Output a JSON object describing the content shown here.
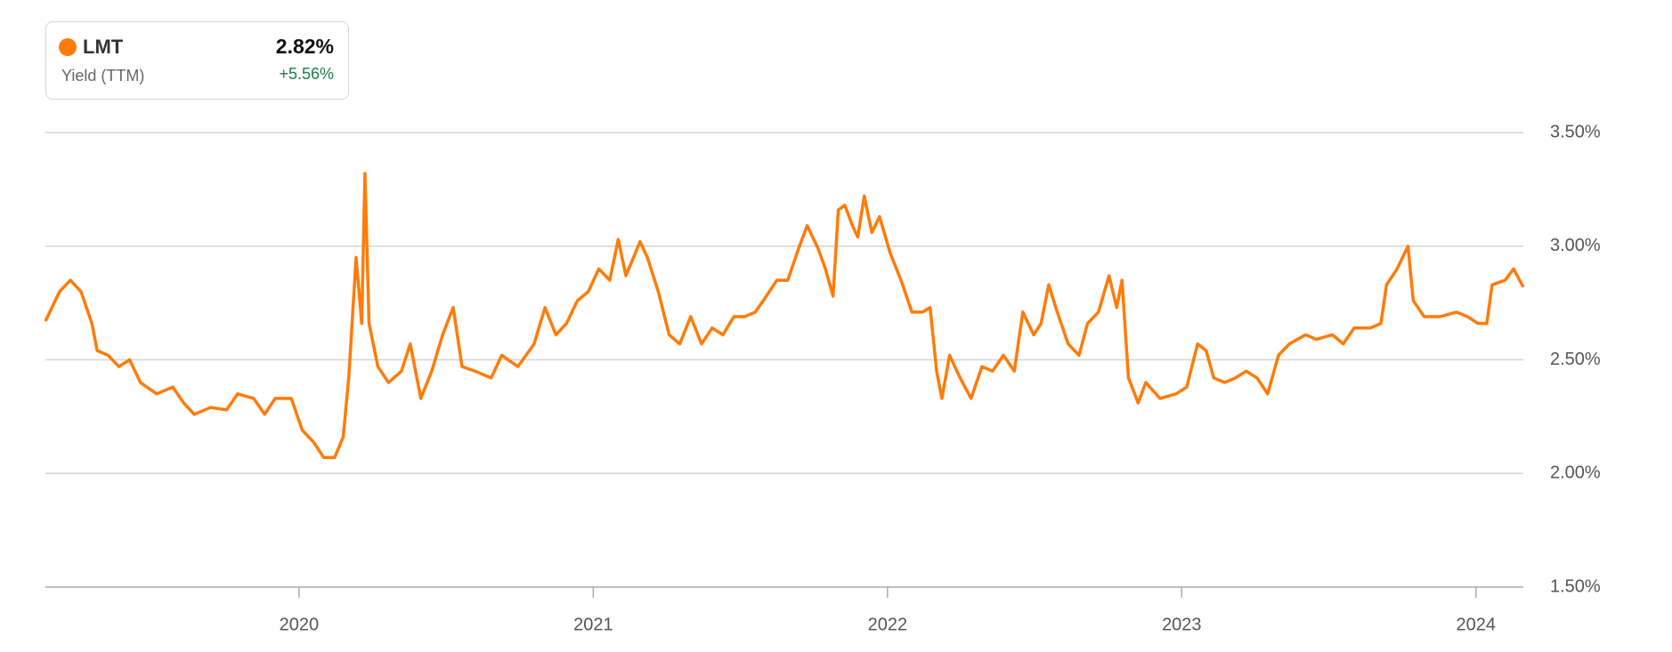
{
  "chart_data": {
    "type": "line",
    "summary": {
      "metric": "Yield (TTM)",
      "last": "2.82%",
      "change": "+5.56%"
    },
    "xlim": [
      2019.138,
      2024.161
    ],
    "xticks": [
      2020,
      2021,
      2022,
      2023,
      2024
    ],
    "ylim": [
      1.5,
      3.5
    ],
    "yticks": [
      {
        "value": 1.5,
        "label": "1.50%"
      },
      {
        "value": 2,
        "label": "2.00%"
      },
      {
        "value": 2.5,
        "label": "2.50%"
      },
      {
        "value": 3,
        "label": "3.00%"
      },
      {
        "value": 3.5,
        "label": "3.50%"
      }
    ],
    "grid": true,
    "x": [
      2019.138,
      2019.186,
      2019.223,
      2019.259,
      2019.296,
      2019.314,
      2019.351,
      2019.388,
      2019.424,
      2019.461,
      2019.516,
      2019.571,
      2019.608,
      2019.644,
      2019.699,
      2019.754,
      2019.791,
      2019.846,
      2019.883,
      2019.919,
      2019.974,
      2020.011,
      2020.048,
      2020.084,
      2020.121,
      2020.15,
      2020.169,
      2020.194,
      2020.213,
      2020.224,
      2020.238,
      2020.268,
      2020.304,
      2020.348,
      2020.378,
      2020.414,
      2020.451,
      2020.488,
      2020.524,
      2020.554,
      2020.598,
      2020.653,
      2020.689,
      2020.744,
      2020.799,
      2020.836,
      2020.873,
      2020.909,
      2020.946,
      2020.983,
      2021.019,
      2021.056,
      2021.085,
      2021.111,
      2021.159,
      2021.184,
      2021.221,
      2021.258,
      2021.294,
      2021.331,
      2021.368,
      2021.404,
      2021.441,
      2021.478,
      2021.514,
      2021.551,
      2021.588,
      2021.624,
      2021.661,
      2021.698,
      2021.727,
      2021.764,
      2021.789,
      2021.815,
      2021.833,
      2021.855,
      2021.881,
      2021.899,
      2021.921,
      2021.947,
      2021.973,
      2022.009,
      2022.046,
      2022.083,
      2022.119,
      2022.145,
      2022.167,
      2022.185,
      2022.211,
      2022.247,
      2022.284,
      2022.321,
      2022.357,
      2022.394,
      2022.431,
      2022.46,
      2022.497,
      2022.522,
      2022.548,
      2022.577,
      2022.614,
      2022.651,
      2022.68,
      2022.717,
      2022.753,
      2022.779,
      2022.797,
      2022.819,
      2022.852,
      2022.878,
      2022.926,
      2022.981,
      2023.017,
      2023.054,
      2023.083,
      2023.109,
      2023.146,
      2023.182,
      2023.219,
      2023.256,
      2023.292,
      2023.329,
      2023.366,
      2023.421,
      2023.457,
      2023.512,
      2023.549,
      2023.586,
      2023.641,
      2023.677,
      2023.696,
      2023.732,
      2023.769,
      2023.787,
      2023.824,
      2023.879,
      2023.934,
      2023.971,
      2024.007,
      2024.037,
      2024.055,
      2024.099,
      2024.128,
      2024.161
    ],
    "series": [
      {
        "name": "LMT",
        "color": "#ff7b0a",
        "values": [
          2.67,
          2.8,
          2.85,
          2.8,
          2.66,
          2.54,
          2.52,
          2.47,
          2.5,
          2.4,
          2.35,
          2.38,
          2.31,
          2.26,
          2.29,
          2.28,
          2.35,
          2.33,
          2.26,
          2.33,
          2.33,
          2.19,
          2.14,
          2.07,
          2.07,
          2.16,
          2.42,
          2.95,
          2.66,
          3.32,
          2.66,
          2.47,
          2.4,
          2.45,
          2.57,
          2.33,
          2.45,
          2.61,
          2.73,
          2.47,
          2.45,
          2.42,
          2.52,
          2.47,
          2.57,
          2.73,
          2.61,
          2.66,
          2.76,
          2.8,
          2.9,
          2.85,
          3.03,
          2.87,
          3.02,
          2.95,
          2.8,
          2.61,
          2.57,
          2.69,
          2.57,
          2.64,
          2.61,
          2.69,
          2.69,
          2.71,
          2.78,
          2.85,
          2.85,
          2.99,
          3.09,
          2.99,
          2.9,
          2.78,
          3.16,
          3.18,
          3.09,
          3.04,
          3.22,
          3.06,
          3.13,
          2.97,
          2.85,
          2.71,
          2.71,
          2.73,
          2.45,
          2.33,
          2.52,
          2.42,
          2.33,
          2.47,
          2.45,
          2.52,
          2.45,
          2.71,
          2.61,
          2.66,
          2.83,
          2.71,
          2.57,
          2.52,
          2.66,
          2.71,
          2.87,
          2.73,
          2.85,
          2.42,
          2.31,
          2.4,
          2.33,
          2.35,
          2.38,
          2.57,
          2.54,
          2.42,
          2.4,
          2.42,
          2.45,
          2.42,
          2.35,
          2.52,
          2.57,
          2.61,
          2.59,
          2.61,
          2.57,
          2.64,
          2.64,
          2.66,
          2.83,
          2.9,
          3.0,
          2.76,
          2.69,
          2.69,
          2.71,
          2.69,
          2.66,
          2.66,
          2.83,
          2.85,
          2.9,
          2.82
        ]
      }
    ]
  }
}
